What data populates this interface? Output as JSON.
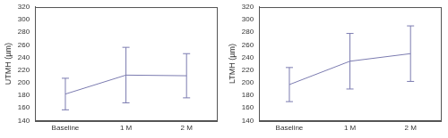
{
  "chart_data": [
    {
      "type": "line",
      "y_label": "UTMH (µm)",
      "categories": [
        "Baseline",
        "1 M",
        "2 M"
      ],
      "values": [
        182,
        212,
        211
      ],
      "errors": [
        25,
        44,
        35
      ],
      "color": "#7b7bb0",
      "ylim": [
        140,
        320
      ],
      "yticks": [
        140,
        160,
        180,
        200,
        220,
        240,
        260,
        280,
        300,
        320
      ],
      "grid": false
    },
    {
      "type": "line",
      "y_label": "LTMH (µm)",
      "categories": [
        "Baseline",
        "1 M",
        "2 M"
      ],
      "values": [
        197,
        234,
        246
      ],
      "errors": [
        27,
        44,
        44
      ],
      "color": "#7b7bb0",
      "ylim": [
        140,
        320
      ],
      "yticks": [
        140,
        160,
        180,
        200,
        220,
        240,
        260,
        280,
        300,
        320
      ],
      "grid": false
    }
  ]
}
